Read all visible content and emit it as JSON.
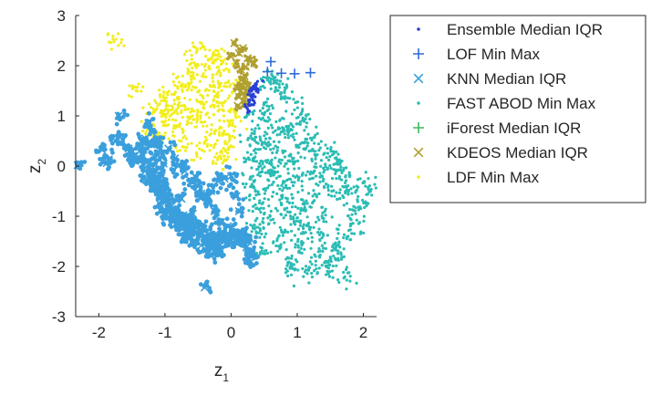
{
  "chart_data": {
    "type": "scatter",
    "title": "",
    "xlabel": "z",
    "xlabel_sub": "1",
    "ylabel": "z",
    "ylabel_sub": "2",
    "xlim": [
      -2.35,
      2.2
    ],
    "ylim": [
      -3,
      3
    ],
    "xticks": [
      -2,
      -1,
      0,
      1,
      2
    ],
    "xtick_labels": [
      "-2",
      "-1",
      "0",
      "1",
      "2"
    ],
    "yticks": [
      -3,
      -2,
      -1,
      0,
      1,
      2,
      3
    ],
    "ytick_labels": [
      "-3",
      "-2",
      "-1",
      "0",
      "1",
      "2",
      "3"
    ],
    "grid": false,
    "legend_position": "outside-right",
    "series": [
      {
        "name": "Ensemble Median IQR",
        "marker": "dot",
        "color": "#2b3fd6",
        "description": "compact cluster of points",
        "points": [
          [
            0.25,
            1.3
          ],
          [
            0.28,
            1.4
          ],
          [
            0.3,
            1.5
          ],
          [
            0.32,
            1.55
          ],
          [
            0.35,
            1.62
          ],
          [
            0.3,
            1.2
          ],
          [
            0.33,
            1.35
          ],
          [
            0.38,
            1.48
          ],
          [
            0.27,
            1.1
          ],
          [
            0.36,
            1.58
          ],
          [
            0.41,
            1.66
          ],
          [
            0.3,
            1.45
          ],
          [
            0.24,
            1.18
          ],
          [
            0.39,
            1.52
          ],
          [
            0.34,
            1.28
          ]
        ]
      },
      {
        "name": "LOF Min Max",
        "marker": "plus",
        "color": "#2f6bd6",
        "points": [
          [
            0.6,
            2.08
          ],
          [
            0.55,
            1.88
          ],
          [
            0.76,
            1.85
          ],
          [
            0.96,
            1.84
          ],
          [
            1.2,
            1.86
          ]
        ]
      },
      {
        "name": "KNN Median IQR",
        "marker": "x",
        "color": "#3a9fdc",
        "description": "dense blue cluster with x outliers",
        "points": [
          [
            -2.32,
            0.02
          ],
          [
            -1.95,
            0.32
          ],
          [
            -1.85,
            0.13
          ],
          [
            -1.88,
            0.06
          ],
          [
            -1.7,
            1.0
          ],
          [
            -1.75,
            0.5
          ],
          [
            -1.68,
            0.58
          ],
          [
            -1.55,
            0.35
          ],
          [
            -1.48,
            0.2
          ],
          [
            -1.45,
            0.1
          ],
          [
            -1.25,
            0.86
          ],
          [
            -1.3,
            0.55
          ],
          [
            -1.35,
            0.4
          ],
          [
            -1.38,
            0.3
          ],
          [
            -1.2,
            0.68
          ],
          [
            -1.15,
            0.48
          ],
          [
            -1.22,
            -0.25
          ],
          [
            -1.1,
            -0.45
          ],
          [
            -1.05,
            -0.55
          ],
          [
            -0.95,
            -0.85
          ],
          [
            -0.88,
            -1.0
          ],
          [
            -0.75,
            -1.2
          ],
          [
            -0.7,
            -1.05
          ],
          [
            -0.62,
            -1.42
          ],
          [
            -0.55,
            -1.48
          ],
          [
            -0.48,
            -1.3
          ],
          [
            -0.42,
            -1.25
          ],
          [
            -0.35,
            -1.45
          ],
          [
            -0.3,
            -1.4
          ],
          [
            -0.22,
            -1.5
          ],
          [
            -0.2,
            -1.62
          ],
          [
            -0.18,
            -1.68
          ],
          [
            -0.12,
            -1.35
          ],
          [
            -0.08,
            -1.48
          ],
          [
            0.0,
            -1.55
          ],
          [
            0.05,
            -1.42
          ],
          [
            0.1,
            -1.35
          ],
          [
            0.2,
            -1.55
          ],
          [
            0.26,
            -1.5
          ],
          [
            0.28,
            -1.75
          ],
          [
            0.3,
            -1.8
          ],
          [
            0.3,
            -1.9
          ],
          [
            0.23,
            -1.62
          ],
          [
            -0.32,
            -1.6
          ],
          [
            -0.35,
            -1.72
          ],
          [
            -0.2,
            -1.75
          ],
          [
            -0.98,
            -0.9
          ],
          [
            -1.0,
            -1.0
          ],
          [
            -1.05,
            -0.58
          ],
          [
            -1.12,
            -0.3
          ],
          [
            -1.18,
            -0.12
          ],
          [
            -1.1,
            0.22
          ],
          [
            -1.02,
            0.05
          ],
          [
            -1.02,
            -0.35
          ],
          [
            -0.95,
            -0.6
          ],
          [
            -0.75,
            -0.65
          ],
          [
            -0.8,
            -1.22
          ],
          [
            -0.68,
            -1.32
          ],
          [
            -0.6,
            -1.28
          ],
          [
            -0.5,
            -1.2
          ],
          [
            -0.4,
            -1.4
          ],
          [
            -0.15,
            -1.45
          ],
          [
            0.15,
            -1.38
          ],
          [
            0.22,
            -1.42
          ],
          [
            -1.4,
            0.18
          ],
          [
            -1.3,
            -0.1
          ],
          [
            -1.28,
            -0.28
          ],
          [
            -1.15,
            -0.45
          ],
          [
            -1.08,
            -0.75
          ],
          [
            -0.98,
            -0.7
          ],
          [
            -0.88,
            -1.1
          ],
          [
            -0.82,
            -0.95
          ],
          [
            -0.72,
            -0.98
          ],
          [
            -0.45,
            -1.58
          ],
          [
            -0.35,
            -1.62
          ],
          [
            -0.25,
            -1.42
          ],
          [
            -0.05,
            -1.38
          ],
          [
            0.18,
            -1.46
          ],
          [
            -0.55,
            -0.2
          ],
          [
            -0.45,
            -0.55
          ],
          [
            -0.35,
            -0.72
          ],
          [
            -0.25,
            -0.9
          ],
          [
            -0.15,
            -1.12
          ],
          [
            -0.05,
            -1.2
          ],
          [
            -1.0,
            -0.5
          ],
          [
            -0.4,
            -2.42
          ],
          [
            -0.65,
            -1.1
          ],
          [
            -0.58,
            -0.95
          ],
          [
            -0.9,
            -0.8
          ],
          [
            -1.05,
            -0.2
          ],
          [
            -1.2,
            0.0
          ],
          [
            -1.25,
            0.1
          ],
          [
            -1.1,
            0.5
          ],
          [
            -0.95,
            0.35
          ],
          [
            -0.85,
            0.15
          ],
          [
            -0.8,
            0.0
          ],
          [
            -0.7,
            -0.1
          ],
          [
            -0.6,
            -0.3
          ],
          [
            -0.5,
            -0.4
          ],
          [
            -0.42,
            -0.6
          ],
          [
            -0.3,
            -0.5
          ],
          [
            -0.2,
            -0.3
          ],
          [
            -0.1,
            -0.25
          ],
          [
            0.0,
            -0.2
          ],
          [
            0.08,
            -0.6
          ],
          [
            0.12,
            -0.9
          ]
        ]
      },
      {
        "name": "FAST ABOD Min Max",
        "marker": "dot",
        "color": "#2bbcb4",
        "description": "large teal cloud spreading to the right and downward",
        "points": [
          [
            0.3,
            1.0
          ],
          [
            0.4,
            0.6
          ],
          [
            0.5,
            0.9
          ],
          [
            0.6,
            0.4
          ],
          [
            0.7,
            0.8
          ],
          [
            0.8,
            0.2
          ],
          [
            0.9,
            0.6
          ],
          [
            1.0,
            0.1
          ],
          [
            1.1,
            0.4
          ],
          [
            1.2,
            -0.2
          ],
          [
            1.3,
            0.2
          ],
          [
            1.4,
            -0.4
          ],
          [
            1.5,
            0.0
          ],
          [
            1.6,
            -0.6
          ],
          [
            1.7,
            -0.3
          ],
          [
            1.8,
            -0.9
          ],
          [
            2.15,
            -0.55
          ],
          [
            1.9,
            -1.2
          ],
          [
            1.75,
            -2.2
          ],
          [
            1.5,
            -2.05
          ],
          [
            1.3,
            -1.8
          ],
          [
            1.1,
            -1.5
          ],
          [
            0.9,
            -1.9
          ],
          [
            0.7,
            -1.6
          ],
          [
            0.5,
            -1.3
          ],
          [
            0.4,
            -0.8
          ],
          [
            0.6,
            -0.5
          ],
          [
            0.8,
            -0.9
          ],
          [
            1.0,
            -1.1
          ],
          [
            1.2,
            -0.7
          ],
          [
            1.4,
            -1.0
          ],
          [
            0.9,
            1.3
          ],
          [
            0.8,
            1.5
          ],
          [
            0.6,
            1.2
          ],
          [
            1.0,
            0.9
          ],
          [
            1.1,
            1.0
          ],
          [
            1.25,
            0.6
          ],
          [
            1.45,
            0.3
          ],
          [
            1.55,
            0.1
          ],
          [
            1.65,
            -0.1
          ],
          [
            0.35,
            0.2
          ],
          [
            0.45,
            -0.1
          ],
          [
            0.55,
            0.0
          ],
          [
            0.65,
            -0.2
          ],
          [
            0.75,
            -0.4
          ],
          [
            0.85,
            -0.6
          ],
          [
            0.95,
            -0.3
          ],
          [
            1.05,
            -0.8
          ],
          [
            1.15,
            -1.2
          ],
          [
            1.35,
            -1.4
          ],
          [
            1.55,
            -1.6
          ],
          [
            1.65,
            -1.85
          ],
          [
            0.95,
            -2.1
          ],
          [
            0.3,
            0.4
          ],
          [
            0.3,
            -0.3
          ],
          [
            0.35,
            -0.6
          ],
          [
            0.5,
            0.5
          ],
          [
            0.7,
            0.0
          ],
          [
            0.8,
            0.7
          ],
          [
            1.3,
            -0.1
          ],
          [
            1.85,
            -0.5
          ],
          [
            2.0,
            -0.3
          ],
          [
            1.95,
            -0.8
          ],
          [
            1.7,
            -1.4
          ],
          [
            1.4,
            -2.0
          ],
          [
            1.2,
            -2.1
          ],
          [
            1.0,
            -1.7
          ],
          [
            0.8,
            -1.3
          ],
          [
            0.6,
            -1.0
          ],
          [
            0.45,
            -1.7
          ],
          [
            0.35,
            -1.2
          ],
          [
            0.58,
            1.6
          ],
          [
            0.72,
            1.7
          ],
          [
            0.55,
            1.7
          ]
        ]
      },
      {
        "name": "iForest Median IQR",
        "marker": "plus",
        "color": "#3fb85a",
        "points": []
      },
      {
        "name": "KDEOS Median IQR",
        "marker": "x",
        "color": "#b0a030",
        "description": "olive cluster near origin with x outliers above",
        "points": [
          [
            0.05,
            2.45
          ],
          [
            0.18,
            2.35
          ],
          [
            0.12,
            2.25
          ],
          [
            0.25,
            2.15
          ],
          [
            0.35,
            2.05
          ],
          [
            0.3,
            2.12
          ],
          [
            0.22,
            1.98
          ],
          [
            0.0,
            2.18
          ],
          [
            0.08,
            2.05
          ],
          [
            0.15,
            1.92
          ],
          [
            0.2,
            1.8
          ],
          [
            0.25,
            1.6
          ],
          [
            0.15,
            1.5
          ],
          [
            0.2,
            1.4
          ],
          [
            0.18,
            1.3
          ],
          [
            0.1,
            1.2
          ],
          [
            0.22,
            1.25
          ],
          [
            0.14,
            1.6
          ],
          [
            0.25,
            1.45
          ],
          [
            0.12,
            1.38
          ],
          [
            0.2,
            1.65
          ],
          [
            0.16,
            1.72
          ],
          [
            0.1,
            1.55
          ]
        ]
      },
      {
        "name": "LDF Min Max",
        "marker": "dot",
        "color": "#f2ee1e",
        "description": "yellow cloud in upper-left quadrant near origin",
        "points": [
          [
            -1.75,
            2.45
          ],
          [
            -0.5,
            2.35
          ],
          [
            -0.3,
            2.2
          ],
          [
            -0.4,
            2.0
          ],
          [
            -0.6,
            1.8
          ],
          [
            -0.8,
            1.6
          ],
          [
            -1.0,
            1.4
          ],
          [
            -1.2,
            1.2
          ],
          [
            -1.45,
            1.58
          ],
          [
            -0.7,
            1.2
          ],
          [
            -0.5,
            1.0
          ],
          [
            -0.3,
            0.8
          ],
          [
            -0.1,
            0.6
          ],
          [
            0.0,
            0.4
          ],
          [
            -0.2,
            1.4
          ],
          [
            -0.4,
            1.2
          ],
          [
            -0.6,
            0.9
          ],
          [
            -0.8,
            0.7
          ],
          [
            -1.0,
            0.9
          ],
          [
            -1.1,
            0.6
          ],
          [
            -0.9,
            1.1
          ],
          [
            -0.2,
            1.8
          ],
          [
            -0.1,
            2.0
          ],
          [
            0.0,
            1.6
          ],
          [
            -0.15,
            1.2
          ],
          [
            -0.35,
            0.5
          ],
          [
            -0.55,
            0.3
          ],
          [
            -0.75,
            0.4
          ],
          [
            -1.25,
            0.75
          ],
          [
            -0.1,
            0.2
          ],
          [
            -0.05,
            1.0
          ],
          [
            -0.25,
            1.55
          ],
          [
            -0.45,
            1.45
          ],
          [
            -0.65,
            1.6
          ],
          [
            -0.85,
            1.3
          ],
          [
            -1.05,
            1.05
          ],
          [
            -0.15,
            0.1
          ],
          [
            0.05,
            0.8
          ],
          [
            -0.2,
            2.15
          ],
          [
            -0.55,
            2.1
          ]
        ]
      }
    ]
  }
}
